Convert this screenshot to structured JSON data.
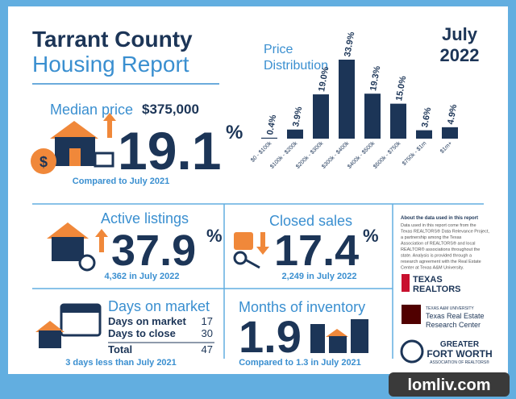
{
  "header": {
    "title_line1": "Tarrant County",
    "title_line2": "Housing Report",
    "month": "July",
    "year": "2022"
  },
  "median_price": {
    "label": "Median price",
    "price": "$375,000",
    "change": "19.1",
    "unit": "%",
    "note": "Compared to July 2021"
  },
  "chart_data": {
    "type": "bar",
    "title_line1": "Price",
    "title_line2": "Distribution",
    "categories": [
      "$0 - $100k",
      "$100k - $200k",
      "$200k - $300k",
      "$300k - $400k",
      "$400k - $500k",
      "$500k - $750k",
      "$750k - $1m",
      "$1m+"
    ],
    "values": [
      0.4,
      3.9,
      19.0,
      33.9,
      19.3,
      15.0,
      3.6,
      4.9
    ],
    "value_labels": [
      "0.4%",
      "3.9%",
      "19.0%",
      "33.9%",
      "19.3%",
      "15.0%",
      "3.6%",
      "4.9%"
    ],
    "color": "#1c3557"
  },
  "active_listings": {
    "label": "Active listings",
    "change": "37.9",
    "unit": "%",
    "note": "4,362 in July 2022"
  },
  "closed_sales": {
    "label": "Closed sales",
    "change": "17.4",
    "unit": "%",
    "note": "2,249 in July 2022"
  },
  "about": {
    "title": "About the data used in this report",
    "lines": [
      "Data used in this report come from the",
      "Texas REALTORS® Data Relevance Project,",
      "a partnership among the Texas",
      "Association of REALTORS® and local",
      "REALTOR® associations throughout the",
      "state. Analysis is provided through a",
      "research agreement with the Real Estate",
      "Center at Texas A&M University."
    ]
  },
  "days_on_market": {
    "label": "Days on market",
    "rows": [
      [
        "Days on market",
        17
      ],
      [
        "Days to close",
        30
      ],
      [
        "Total",
        47
      ]
    ],
    "note": "3 days less than July 2021"
  },
  "months_inventory": {
    "label": "Months of inventory",
    "value": "1.9",
    "note": "Compared to 1.3 in July 2021"
  },
  "logos": {
    "texas_realtors_1": "TEXAS",
    "texas_realtors_2": "REALTORS",
    "tamu": "TEXAS A&M UNIVERSITY",
    "recenter_1": "Texas Real Estate",
    "recenter_2": "Research Center",
    "gfw_1": "GREATER",
    "gfw_2": "FORT WORTH",
    "gfw_3": "ASSOCIATION OF REALTORS®"
  },
  "watermark": "lomliv.com"
}
